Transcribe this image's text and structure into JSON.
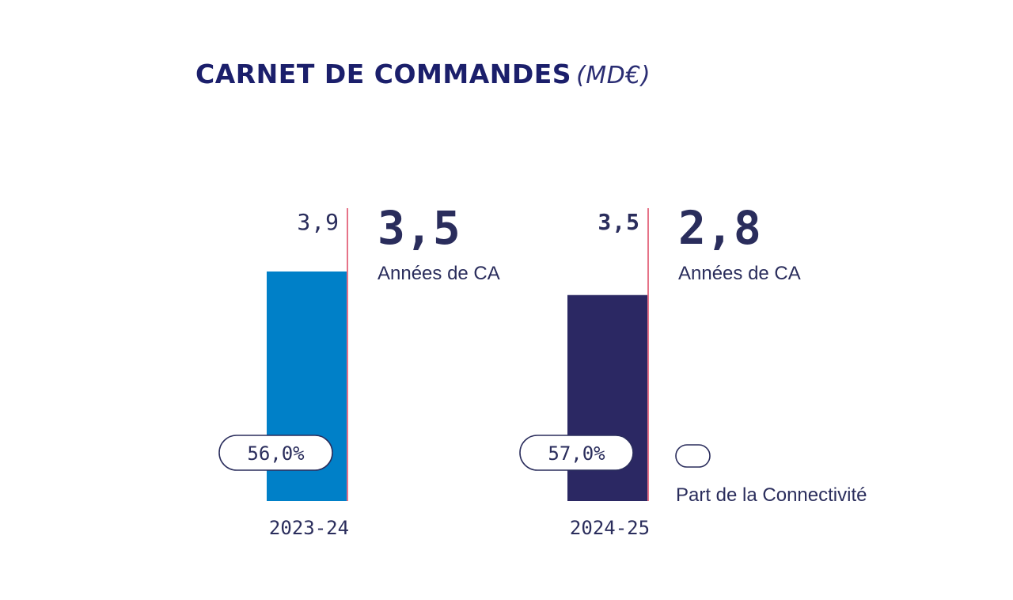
{
  "title": "CARNET DE COMMANDES",
  "title_unit": "(MD€)",
  "chart_data": {
    "type": "bar",
    "categories": [
      "2023-24",
      "2024-25"
    ],
    "values": [
      3.9,
      3.5
    ],
    "value_labels": [
      "3,9",
      "3,5"
    ],
    "share_labels": [
      "56,0%",
      "57,0%"
    ],
    "share_values": [
      56.0,
      57.0
    ],
    "annual_values": [
      3.5,
      2.8
    ],
    "annual_labels": [
      "3,5",
      "2,8"
    ],
    "annual_caption": "Années de CA",
    "legend_label": "Part de la Connectivité",
    "legend_placement": "bottom-right",
    "ylim": [
      0,
      5.2
    ],
    "grid": false,
    "colors": {
      "bar_2023": "#0080c8",
      "bar_2024": "#2b2863",
      "marker_line": "#e0506a",
      "text_dark": "#2a2d5c",
      "title": "#1b1f6b"
    }
  }
}
